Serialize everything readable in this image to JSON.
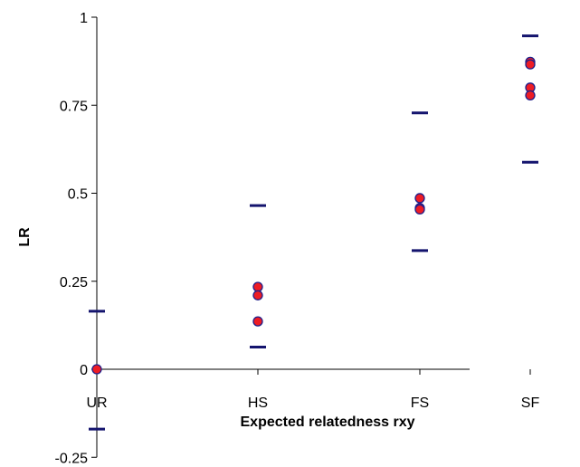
{
  "chart_data": {
    "type": "scatter",
    "title": "",
    "xlabel": "Expected relatedness rxy",
    "ylabel": "LR",
    "categories": [
      "UR",
      "HS",
      "FS",
      "SF"
    ],
    "x_values": [
      0,
      0.25,
      0.5,
      0.625
    ],
    "ylim": [
      -0.25,
      1
    ],
    "yticks": [
      -0.25,
      0,
      0.25,
      0.5,
      0.75,
      1
    ],
    "ytick_labels": [
      "-0.25",
      "0",
      "0.25",
      "0.5",
      "0.75",
      "1"
    ],
    "grid": false,
    "legend": "none",
    "series": [
      {
        "marker": "circle",
        "points": [
          {
            "category": "UR",
            "y": 0
          },
          {
            "category": "HS",
            "y": 0.234
          },
          {
            "category": "HS",
            "y": 0.21
          },
          {
            "category": "HS",
            "y": 0.136
          },
          {
            "category": "FS",
            "y": 0.486
          },
          {
            "category": "FS",
            "y": 0.458
          },
          {
            "category": "FS",
            "y": 0.454
          },
          {
            "category": "SF",
            "y": 0.873
          },
          {
            "category": "SF",
            "y": 0.866
          },
          {
            "category": "SF",
            "y": 0.8
          },
          {
            "category": "SF",
            "y": 0.778
          }
        ]
      },
      {
        "marker": "dash",
        "points": [
          {
            "category": "UR",
            "y": 0.165
          },
          {
            "category": "UR",
            "y": -0.17
          },
          {
            "category": "HS",
            "y": 0.465
          },
          {
            "category": "HS",
            "y": 0.063
          },
          {
            "category": "FS",
            "y": 0.728
          },
          {
            "category": "FS",
            "y": 0.337
          },
          {
            "category": "SF",
            "y": 0.947
          },
          {
            "category": "SF",
            "y": 0.588
          }
        ]
      }
    ]
  },
  "colors": {
    "point_fill": "#ee1c24",
    "point_stroke": "#1f1f8a",
    "dash": "#14146e",
    "axis": "#000000"
  }
}
